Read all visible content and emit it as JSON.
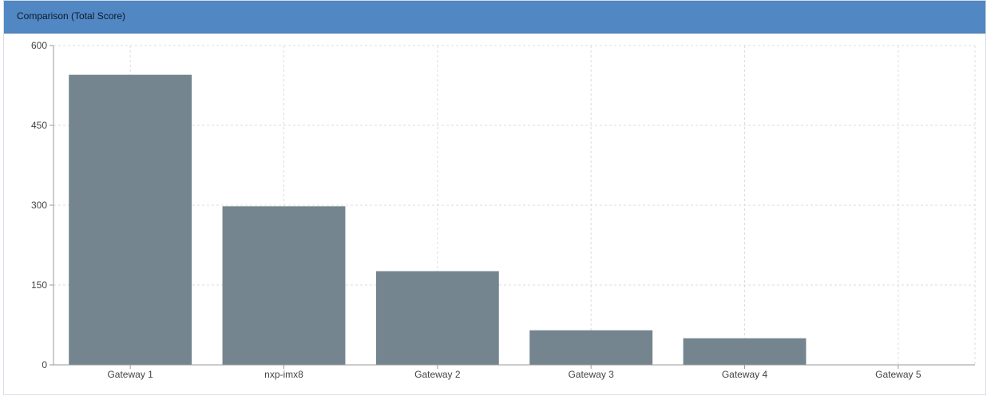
{
  "panel": {
    "title": "Comparison (Total Score)"
  },
  "colors": {
    "header_bg": "#5187c2",
    "bar_fill": "#74858f",
    "grid": "#dcdcdc",
    "axis": "#9a9a9a",
    "tick_text": "#444444"
  },
  "chart_data": {
    "type": "bar",
    "categories": [
      "Gateway 1",
      "nxp-imx8",
      "Gateway 2",
      "Gateway 3",
      "Gateway 4",
      "Gateway 5"
    ],
    "values": [
      545,
      298,
      176,
      65,
      50,
      0
    ],
    "title": "Comparison (Total Score)",
    "xlabel": "",
    "ylabel": "",
    "ylim": [
      0,
      600
    ],
    "yticks": [
      0,
      150,
      300,
      450,
      600
    ],
    "grid": true,
    "legend": "none"
  }
}
